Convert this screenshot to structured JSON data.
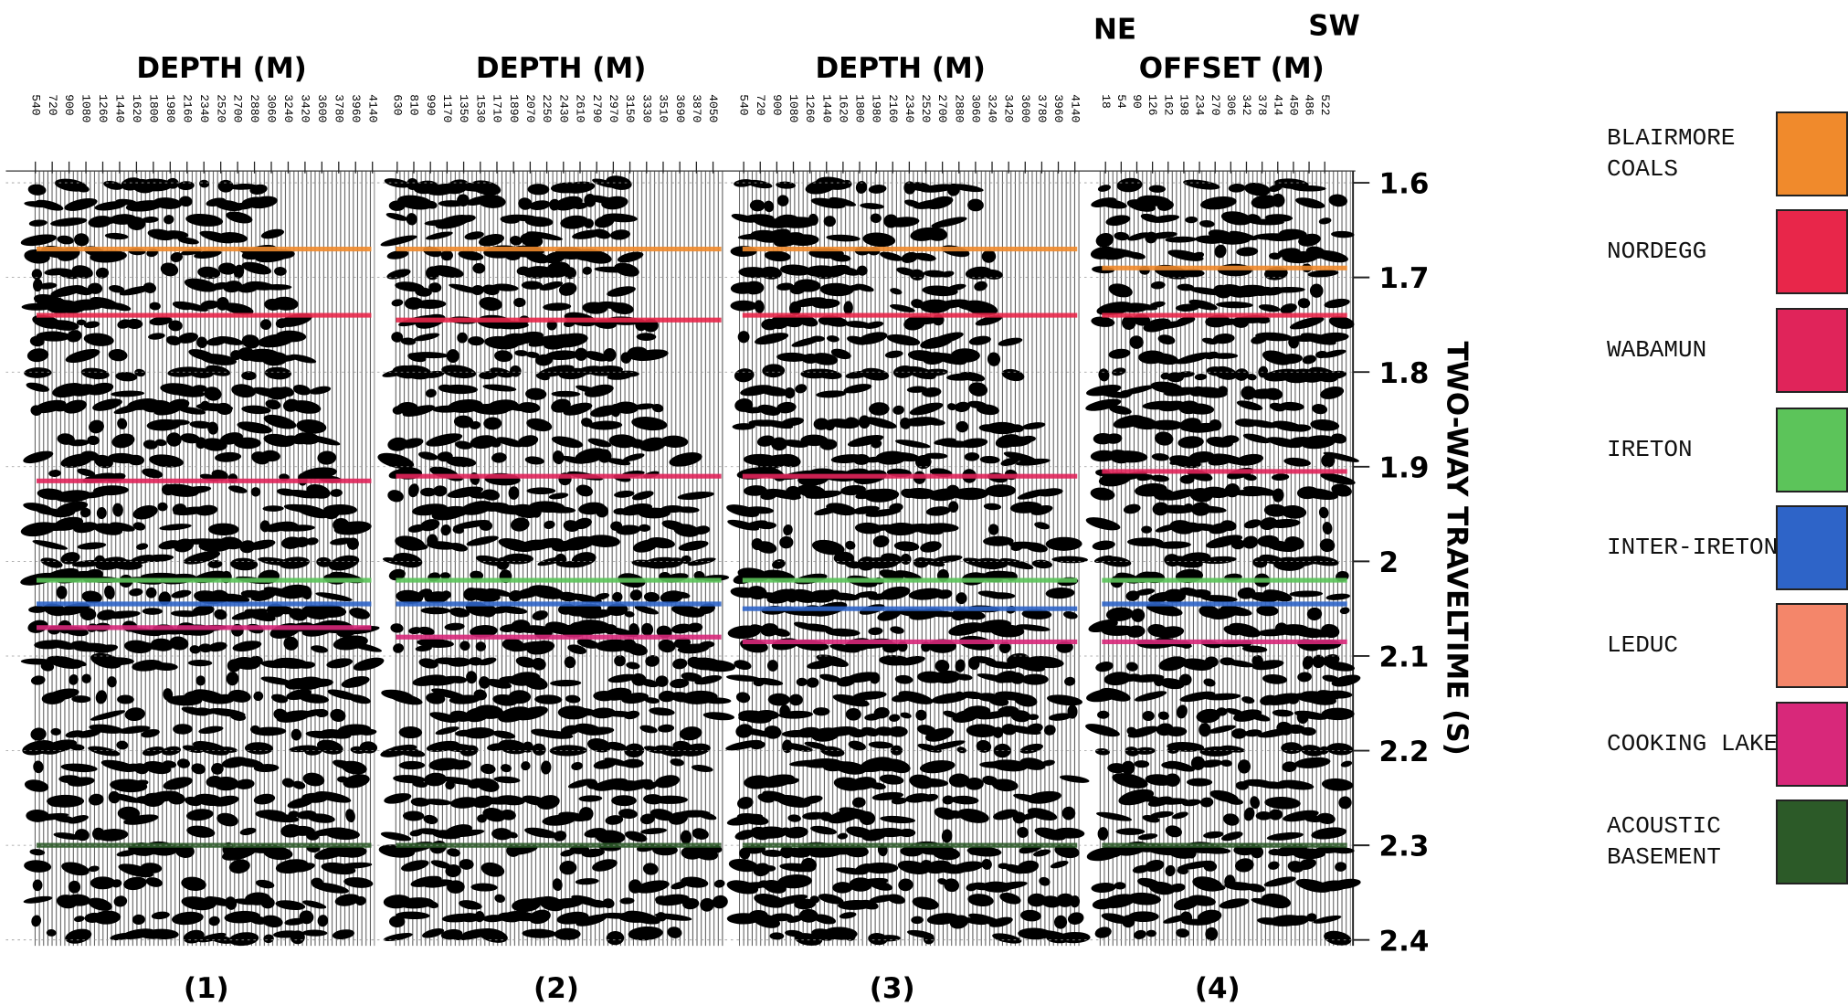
{
  "chart_data": {
    "type": "seismic",
    "ylabel": "TWO-WAY TRAVELTIME (S)",
    "ylim": [
      1.6,
      2.4
    ],
    "yticks": [
      1.6,
      1.7,
      1.8,
      1.9,
      2.0,
      2.1,
      2.2,
      2.3,
      2.4
    ],
    "panels": [
      {
        "title": "DEPTH (M)",
        "label": "(1)",
        "xlim": [
          540,
          4140
        ],
        "xticks": [
          540,
          720,
          900,
          1080,
          1260,
          1440,
          1620,
          1800,
          1980,
          2160,
          2340,
          2520,
          2700,
          2880,
          3060,
          3240,
          3420,
          3600,
          3780,
          3960,
          4140
        ]
      },
      {
        "title": "DEPTH (M)",
        "label": "(2)",
        "xlim": [
          630,
          4050
        ],
        "xticks": [
          630,
          810,
          990,
          1170,
          1350,
          1530,
          1710,
          1890,
          2070,
          2250,
          2430,
          2610,
          2790,
          2970,
          3150,
          3330,
          3510,
          3690,
          3870,
          4050
        ]
      },
      {
        "title": "DEPTH (M)",
        "label": "(3)",
        "xlim": [
          540,
          4140
        ],
        "xticks": [
          540,
          720,
          900,
          1080,
          1260,
          1440,
          1620,
          1800,
          1980,
          2160,
          2340,
          2520,
          2700,
          2880,
          3060,
          3240,
          3420,
          3600,
          3780,
          3960,
          4140
        ]
      },
      {
        "title": "OFFSET (M)",
        "label": "(4)",
        "annotations": [
          "NE",
          "SW"
        ],
        "xlim": [
          18,
          522
        ],
        "xticks": [
          18,
          54,
          90,
          126,
          162,
          198,
          234,
          270,
          306,
          342,
          378,
          414,
          450,
          486,
          522
        ]
      }
    ],
    "series": [
      {
        "name": "BLAIRMORE COALS",
        "color": "#f08a2c",
        "values": [
          1.67,
          1.67,
          1.67,
          1.69
        ]
      },
      {
        "name": "NORDEGG",
        "color": "#e8264a",
        "values": [
          1.74,
          1.745,
          1.74,
          1.74
        ]
      },
      {
        "name": "WABAMUN",
        "color": "#e0245a",
        "values": [
          1.915,
          1.91,
          1.91,
          1.905
        ]
      },
      {
        "name": "IRETON",
        "color": "#5cc45a",
        "values": [
          2.02,
          2.02,
          2.02,
          2.02
        ]
      },
      {
        "name": "INTER-IRETON",
        "color": "#2e64c8",
        "values": [
          2.045,
          2.045,
          2.05,
          2.045
        ]
      },
      {
        "name": "LEDUC",
        "color": "#f4866a",
        "values": [
          null,
          null,
          null,
          null
        ]
      },
      {
        "name": "COOKING LAKE",
        "color": "#d8287a",
        "values": [
          2.07,
          2.08,
          2.085,
          2.085
        ]
      },
      {
        "name": "ACOUSTIC BASEMENT",
        "color": "#2c5a28",
        "values": [
          2.3,
          2.3,
          2.3,
          2.3
        ]
      }
    ]
  }
}
